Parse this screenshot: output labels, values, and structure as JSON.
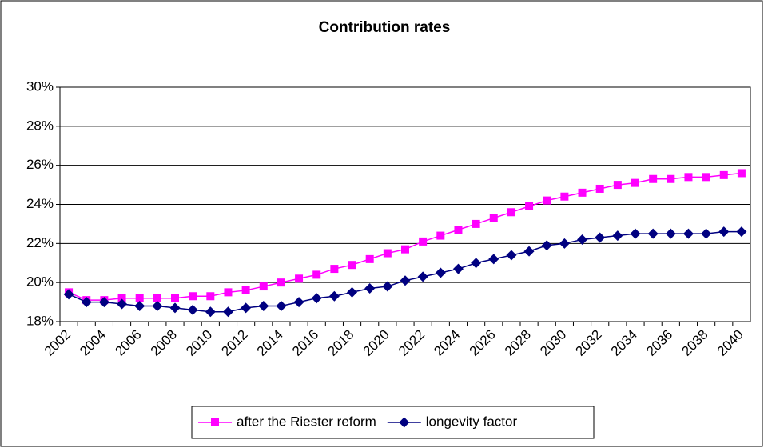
{
  "chart_data": {
    "type": "line",
    "title": "Contribution rates",
    "categories": [
      "2002",
      null,
      "2004",
      null,
      "2006",
      null,
      "2008",
      null,
      "2010",
      null,
      "2012",
      null,
      "2014",
      null,
      "2016",
      null,
      "2018",
      null,
      "2020",
      null,
      "2022",
      null,
      "2024",
      null,
      "2026",
      null,
      "2028",
      null,
      "2030",
      null,
      "2032",
      null,
      "2034",
      null,
      "2036",
      null,
      "2038",
      null,
      "2040"
    ],
    "series": [
      {
        "name": "after the Riester reform",
        "color": "#ff00ff",
        "marker": "square",
        "values": [
          19.5,
          19.1,
          19.1,
          19.2,
          19.2,
          19.2,
          19.2,
          19.3,
          19.3,
          19.5,
          19.6,
          19.8,
          20.0,
          20.2,
          20.4,
          20.7,
          20.9,
          21.2,
          21.5,
          21.7,
          22.1,
          22.4,
          22.7,
          23.0,
          23.3,
          23.6,
          23.9,
          24.2,
          24.4,
          24.6,
          24.8,
          25.0,
          25.1,
          25.3,
          25.3,
          25.4,
          25.4,
          25.5,
          25.6
        ]
      },
      {
        "name": "longevity factor",
        "color": "#000080",
        "marker": "diamond",
        "values": [
          19.4,
          19.0,
          19.0,
          18.9,
          18.8,
          18.8,
          18.7,
          18.6,
          18.5,
          18.5,
          18.7,
          18.8,
          18.8,
          19.0,
          19.2,
          19.3,
          19.5,
          19.7,
          19.8,
          20.1,
          20.3,
          20.5,
          20.7,
          21.0,
          21.2,
          21.4,
          21.6,
          21.9,
          22.0,
          22.2,
          22.3,
          22.4,
          22.5,
          22.5,
          22.5,
          22.5,
          22.5,
          22.6,
          22.6
        ]
      }
    ],
    "ylim": [
      18,
      30
    ],
    "yticks": [
      {
        "value": 18,
        "label": "18%"
      },
      {
        "value": 20,
        "label": "20%"
      },
      {
        "value": 22,
        "label": "22%"
      },
      {
        "value": 24,
        "label": "24%"
      },
      {
        "value": 26,
        "label": "26%"
      },
      {
        "value": 28,
        "label": "28%"
      },
      {
        "value": 30,
        "label": "30%"
      }
    ],
    "grid": true,
    "legend": "bottom"
  }
}
